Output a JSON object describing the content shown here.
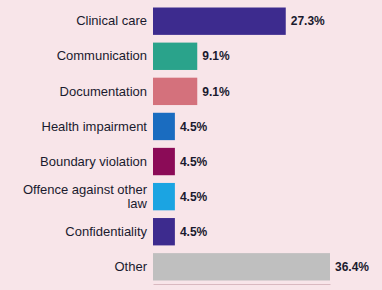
{
  "chart_data": {
    "type": "bar",
    "orientation": "horizontal",
    "categories": [
      "Clinical care",
      "Communication",
      "Documentation",
      "Health impairment",
      "Boundary violation",
      "Offence against other law",
      "Confidentiality",
      "Other"
    ],
    "values": [
      27.3,
      9.1,
      9.1,
      4.5,
      4.5,
      4.5,
      4.5,
      36.4
    ],
    "value_labels": [
      "27.3%",
      "9.1%",
      "9.1%",
      "4.5%",
      "4.5%",
      "4.5%",
      "4.5%",
      "36.4%"
    ],
    "colors": [
      "#3d2b8e",
      "#2aa38b",
      "#d4717c",
      "#1a6cc0",
      "#8b0b57",
      "#1ba4e2",
      "#3d2b8e",
      "#bfbfbf"
    ],
    "xlim": [
      0,
      36.4
    ],
    "tick_labels": "y",
    "data_labels": true,
    "grid": false
  }
}
